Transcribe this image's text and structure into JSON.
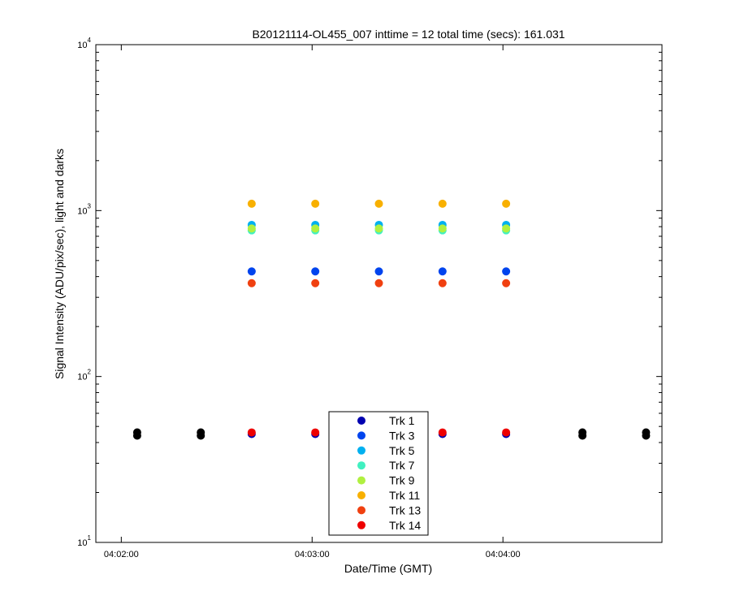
{
  "chart_data": {
    "type": "scatter",
    "title": "B20121114-OL455_007 inttime = 12 total time (secs): 161.031",
    "xlabel": "Date/Time (GMT)",
    "ylabel": "Signal Intensity (ADU/pix/sec), light and darks",
    "yscale": "log",
    "ylim": [
      10,
      10000
    ],
    "xlim": [
      "04:01:52",
      "04:04:50"
    ],
    "x_ticks": [
      "04:02:00",
      "04:03:00",
      "04:04:00"
    ],
    "y_ticks": [
      {
        "value": 10,
        "base": "10",
        "exp": "1"
      },
      {
        "value": 100,
        "base": "10",
        "exp": "2"
      },
      {
        "value": 1000,
        "base": "10",
        "exp": "3"
      },
      {
        "value": 10000,
        "base": "10",
        "exp": "4"
      }
    ],
    "legend_position": "bottom-center",
    "light_times": [
      "04:02:41",
      "04:03:01",
      "04:03:21",
      "04:03:41",
      "04:04:01"
    ],
    "dark_times": [
      "04:02:05",
      "04:02:25",
      "04:04:25",
      "04:04:45"
    ],
    "dark_values": [
      45,
      45,
      45,
      45
    ],
    "dark_color": "#000000",
    "series": [
      {
        "name": "Trk 1",
        "color": "#0000b0",
        "values": [
          45,
          45,
          45,
          45,
          45
        ]
      },
      {
        "name": "Trk 3",
        "color": "#0044ee",
        "values": [
          430,
          430,
          430,
          430,
          430
        ]
      },
      {
        "name": "Trk 5",
        "color": "#00b0f0",
        "values": [
          820,
          820,
          820,
          820,
          820
        ]
      },
      {
        "name": "Trk 7",
        "color": "#40f0c0",
        "values": [
          760,
          760,
          760,
          760,
          760
        ]
      },
      {
        "name": "Trk 9",
        "color": "#b0f040",
        "values": [
          780,
          780,
          780,
          780,
          780
        ]
      },
      {
        "name": "Trk 11",
        "color": "#f8b000",
        "values": [
          1100,
          1100,
          1100,
          1100,
          1100
        ]
      },
      {
        "name": "Trk 13",
        "color": "#f04010",
        "values": [
          365,
          365,
          365,
          365,
          365
        ]
      },
      {
        "name": "Trk 14",
        "color": "#ee0000",
        "values": [
          46,
          46,
          46,
          46,
          46
        ]
      }
    ]
  }
}
